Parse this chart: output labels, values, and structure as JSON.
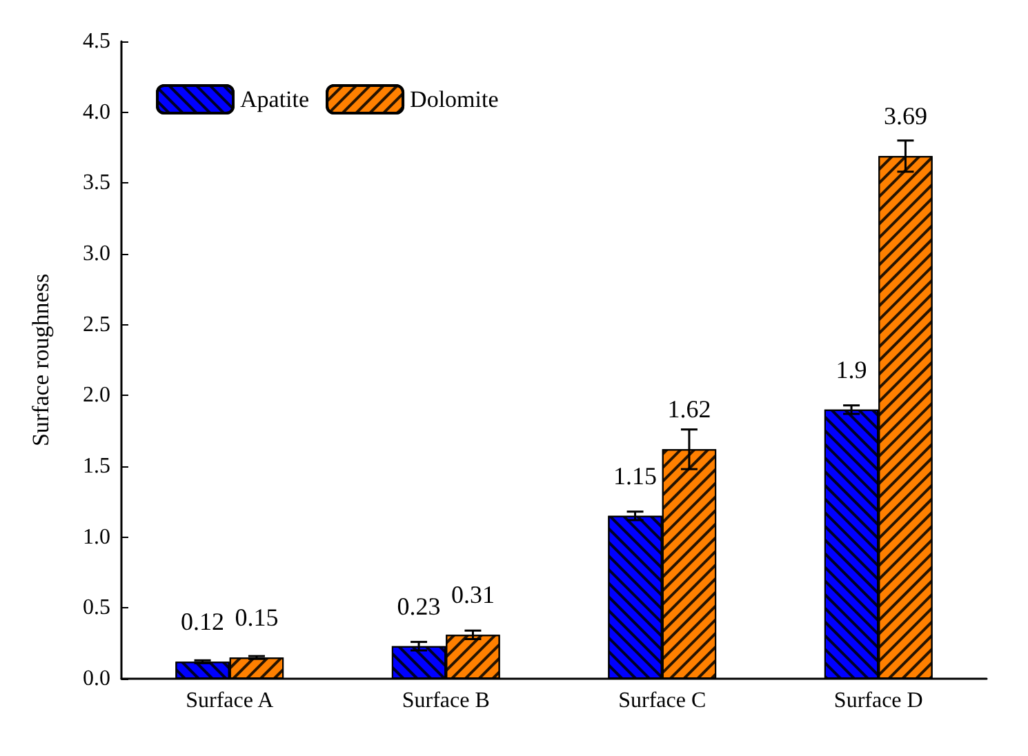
{
  "chart_data": {
    "type": "bar",
    "categories": [
      "Surface A",
      "Surface B",
      "Surface C",
      "Surface D"
    ],
    "series": [
      {
        "name": "Apatite",
        "color": "#0000ff",
        "values": [
          0.12,
          0.23,
          1.15,
          1.9
        ],
        "errors": [
          0.01,
          0.03,
          0.03,
          0.03
        ]
      },
      {
        "name": "Dolomite",
        "color": "#ff8000",
        "values": [
          0.15,
          0.31,
          1.62,
          3.69
        ],
        "errors": [
          0.01,
          0.03,
          0.14,
          0.11
        ]
      }
    ],
    "ylabel": "Surface roughness",
    "ylim": [
      0,
      4.5
    ],
    "yticks": [
      {
        "value": 0,
        "label": "0.0"
      },
      {
        "value": 0.5,
        "label": "0.5"
      },
      {
        "value": 1,
        "label": "1.0"
      },
      {
        "value": 1.5,
        "label": "1.5"
      },
      {
        "value": 2,
        "label": "2.0"
      },
      {
        "value": 2.5,
        "label": "2.5"
      },
      {
        "value": 3,
        "label": "3.0"
      },
      {
        "value": 3.5,
        "label": "3.5"
      },
      {
        "value": 4,
        "label": "4.0"
      },
      {
        "value": 4.5,
        "label": "4.5"
      }
    ],
    "data_labels": true,
    "grid": false,
    "legend": "top left"
  }
}
